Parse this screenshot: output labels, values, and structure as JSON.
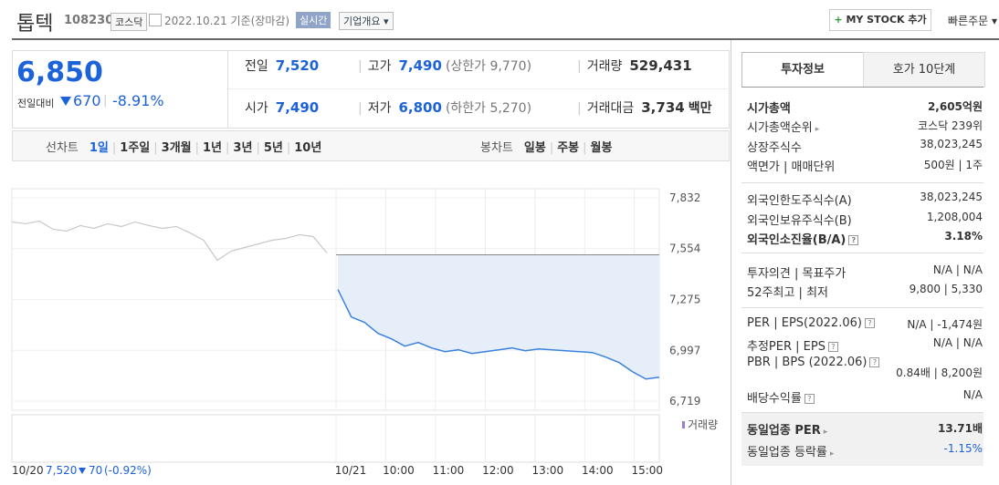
{
  "header": {
    "name": "톱텍",
    "code": "108230",
    "market": "코스닥",
    "date": "2022.10.21 기준(장마감)",
    "realtime": "실시간",
    "overview": "기업개요",
    "mystock": "MY STOCK 추가",
    "quick_order": "빠른주문"
  },
  "quote": {
    "price": "6,850",
    "change_label": "전일대비",
    "change": "670",
    "rate": "-8.91%",
    "fields": [
      {
        "label": "전일",
        "value": "7,520"
      },
      {
        "label": "고가",
        "value": "7,490",
        "extra": "(상한가 9,770)"
      },
      {
        "label": "거래량",
        "value": "529,431"
      },
      {
        "label": "시가",
        "value": "7,490"
      },
      {
        "label": "저가",
        "value": "6,800",
        "extra": "(하한가 5,270)"
      },
      {
        "label": "거래대금",
        "value": "3,734",
        "unit": "백만"
      }
    ]
  },
  "chart_tabs": {
    "line_label": "선차트",
    "line_periods": [
      "1일",
      "1주일",
      "3개월",
      "1년",
      "3년",
      "5년",
      "10년"
    ],
    "candle_label": "봉차트",
    "candle_periods": [
      "일봉",
      "주봉",
      "월봉"
    ]
  },
  "chart": {
    "ylim": [
      6719,
      7832
    ],
    "yticks": [
      {
        "value": 7832,
        "label": "7,832"
      },
      {
        "value": 7554,
        "label": "7,554"
      },
      {
        "value": 7275,
        "label": "7,275"
      },
      {
        "value": 6997,
        "label": "6,997"
      },
      {
        "value": 6719,
        "label": "6,719"
      }
    ],
    "xticks": [
      "10/21",
      "10:00",
      "11:00",
      "12:00",
      "13:00",
      "14:00",
      "15:00"
    ],
    "prev_close": 7520,
    "prev_day": [
      7700,
      7690,
      7705,
      7660,
      7650,
      7680,
      7665,
      7690,
      7675,
      7700,
      7680,
      7665,
      7675,
      7640,
      7600,
      7490,
      7540,
      7560,
      7580,
      7600,
      7610,
      7630,
      7620,
      7530
    ],
    "today": [
      7330,
      7180,
      7150,
      7090,
      7060,
      7020,
      7040,
      7010,
      6990,
      7000,
      6980,
      6990,
      7000,
      7010,
      6995,
      7005,
      7000,
      6995,
      6990,
      6985,
      6960,
      6930,
      6880,
      6840,
      6850
    ],
    "volume_label": "거래량",
    "footer": {
      "date": "10/20",
      "close": "7,520",
      "change": "70",
      "rate": "(-0.92%)"
    }
  },
  "info": {
    "tabs": [
      "투자정보",
      "호가 10단계"
    ],
    "rows": [
      {
        "label": "시가총액",
        "value": "2,605억원"
      },
      {
        "label": "시가총액순위",
        "value": "코스닥 239위"
      },
      {
        "label": "상장주식수",
        "value": "38,023,245"
      },
      {
        "label": "액면가 | 매매단위",
        "value": "500원 | 1주"
      },
      {
        "label": "외국인한도주식수(A)",
        "value": "38,023,245"
      },
      {
        "label": "외국인보유주식수(B)",
        "value": "1,208,004"
      },
      {
        "label": "외국인소진율(B/A)",
        "value": "3.18%"
      },
      {
        "label": "투자의견 | 목표주가",
        "value": "N/A | N/A"
      },
      {
        "label": "52주최고 | 최저",
        "value": "9,800 | 5,330"
      },
      {
        "label": "PER | EPS(2022.06)",
        "value": "N/A | -1,474원"
      },
      {
        "label": "추정PER | EPS",
        "value": "N/A | N/A"
      },
      {
        "label": "PBR | BPS (2022.06)",
        "value": "0.84배 | 8,200원"
      },
      {
        "label": "배당수익률",
        "value": "N/A"
      },
      {
        "label": "동일업종 PER",
        "value": "13.71배"
      },
      {
        "label": "동일업종 등락률",
        "value": "-1.15%"
      }
    ]
  }
}
